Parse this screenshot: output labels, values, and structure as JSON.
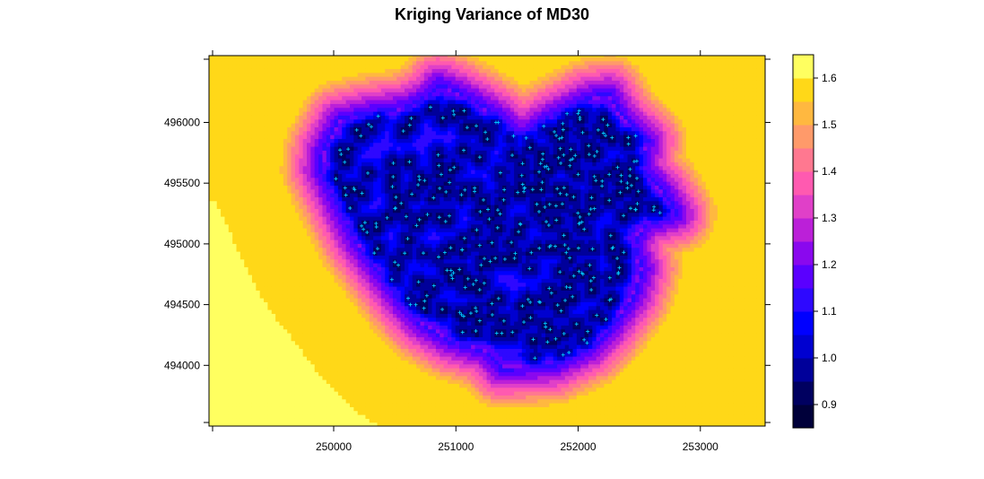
{
  "chart_data": {
    "type": "heatmap",
    "title": "Kriging Variance of MD30",
    "xlabel": "",
    "ylabel": "",
    "xlim": [
      248980,
      253530
    ],
    "ylim": [
      493500,
      496550
    ],
    "x_ticks": [
      250000,
      251000,
      252000,
      253000
    ],
    "y_ticks": [
      494000,
      494500,
      495000,
      495500,
      496000
    ],
    "x_tick_labels": [
      "250000",
      "251000",
      "252000",
      "253000"
    ],
    "y_tick_labels": [
      "494000",
      "494500",
      "495000",
      "495500",
      "496000"
    ],
    "grid": false,
    "legend": {
      "position": "right",
      "range": [
        0.85,
        1.65
      ],
      "ticks": [
        0.9,
        1.0,
        1.1,
        1.2,
        1.3,
        1.4,
        1.5,
        1.6
      ],
      "tick_labels": [
        "0.9",
        "1.0",
        "1.1",
        "1.2",
        "1.3",
        "1.4",
        "1.5",
        "1.6"
      ],
      "bins": [
        0.85,
        0.9,
        0.95,
        1.0,
        1.05,
        1.1,
        1.15,
        1.2,
        1.25,
        1.3,
        1.35,
        1.4,
        1.45,
        1.5,
        1.55,
        1.6,
        1.65
      ],
      "colors": [
        "#00003a",
        "#000060",
        "#00009a",
        "#0000d0",
        "#0000ff",
        "#2e08ff",
        "#5a00ff",
        "#8a08ee",
        "#bb20d8",
        "#e040c8",
        "#ff5ab0",
        "#ff7890",
        "#ff9a6a",
        "#ffb840",
        "#ffd818",
        "#ffff60"
      ]
    },
    "sample_region": [
      [
        250860,
        496310
      ],
      [
        250800,
        496230
      ],
      [
        250600,
        496120
      ],
      [
        250250,
        496070
      ],
      [
        250050,
        496020
      ],
      [
        249920,
        495780
      ],
      [
        249900,
        495620
      ],
      [
        250050,
        495300
      ],
      [
        250200,
        495000
      ],
      [
        250350,
        494800
      ],
      [
        250580,
        494500
      ],
      [
        250720,
        494350
      ],
      [
        250970,
        494200
      ],
      [
        251250,
        494120
      ],
      [
        251380,
        493980
      ],
      [
        251800,
        494010
      ],
      [
        252100,
        494150
      ],
      [
        252250,
        494300
      ],
      [
        252450,
        494570
      ],
      [
        252520,
        494800
      ],
      [
        252450,
        495000
      ],
      [
        252550,
        495170
      ],
      [
        252800,
        495250
      ],
      [
        252680,
        495450
      ],
      [
        252520,
        495620
      ],
      [
        252560,
        495850
      ],
      [
        252350,
        496050
      ],
      [
        252250,
        496230
      ],
      [
        252080,
        496200
      ],
      [
        251750,
        496030
      ],
      [
        251530,
        495880
      ],
      [
        251350,
        496050
      ],
      [
        251180,
        496150
      ],
      [
        251000,
        496250
      ]
    ]
  }
}
